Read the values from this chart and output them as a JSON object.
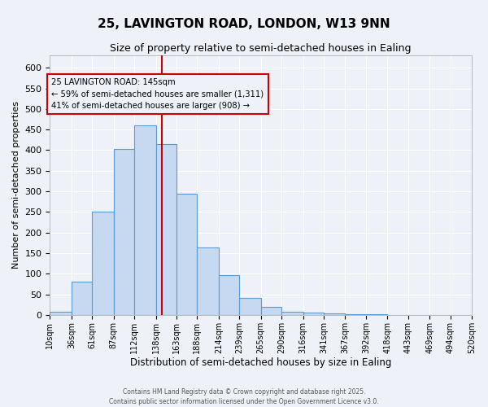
{
  "title_line1": "25, LAVINGTON ROAD, LONDON, W13 9NN",
  "title_line2": "Size of property relative to semi-detached houses in Ealing",
  "xlabel": "Distribution of semi-detached houses by size in Ealing",
  "ylabel": "Number of semi-detached properties",
  "bin_labels": [
    "10sqm",
    "36sqm",
    "61sqm",
    "87sqm",
    "112sqm",
    "138sqm",
    "163sqm",
    "188sqm",
    "214sqm",
    "239sqm",
    "265sqm",
    "290sqm",
    "316sqm",
    "341sqm",
    "367sqm",
    "392sqm",
    "418sqm",
    "443sqm",
    "469sqm",
    "494sqm",
    "520sqm"
  ],
  "bin_edges": [
    10,
    36,
    61,
    87,
    112,
    138,
    163,
    188,
    214,
    239,
    265,
    290,
    316,
    341,
    367,
    392,
    418,
    443,
    469,
    494,
    520
  ],
  "bar_heights": [
    8,
    80,
    250,
    402,
    460,
    415,
    295,
    163,
    96,
    42,
    20,
    7,
    5,
    3,
    1,
    1,
    0.5,
    0.5,
    0.5,
    0.5
  ],
  "bar_color": "#c6d9f1",
  "bar_edge_color": "#5b9bd5",
  "vline_x": 145,
  "vline_color": "#cc0000",
  "ylim": [
    0,
    630
  ],
  "yticks": [
    0,
    50,
    100,
    150,
    200,
    250,
    300,
    350,
    400,
    450,
    500,
    550,
    600
  ],
  "annotation_box_title": "25 LAVINGTON ROAD: 145sqm",
  "annotation_line1": "← 59% of semi-detached houses are smaller (1,311)",
  "annotation_line2": "41% of semi-detached houses are larger (908) →",
  "annotation_box_color": "#cc0000",
  "background_color": "#eef2f8",
  "grid_color": "#ffffff",
  "footer1": "Contains HM Land Registry data © Crown copyright and database right 2025.",
  "footer2": "Contains public sector information licensed under the Open Government Licence v3.0."
}
